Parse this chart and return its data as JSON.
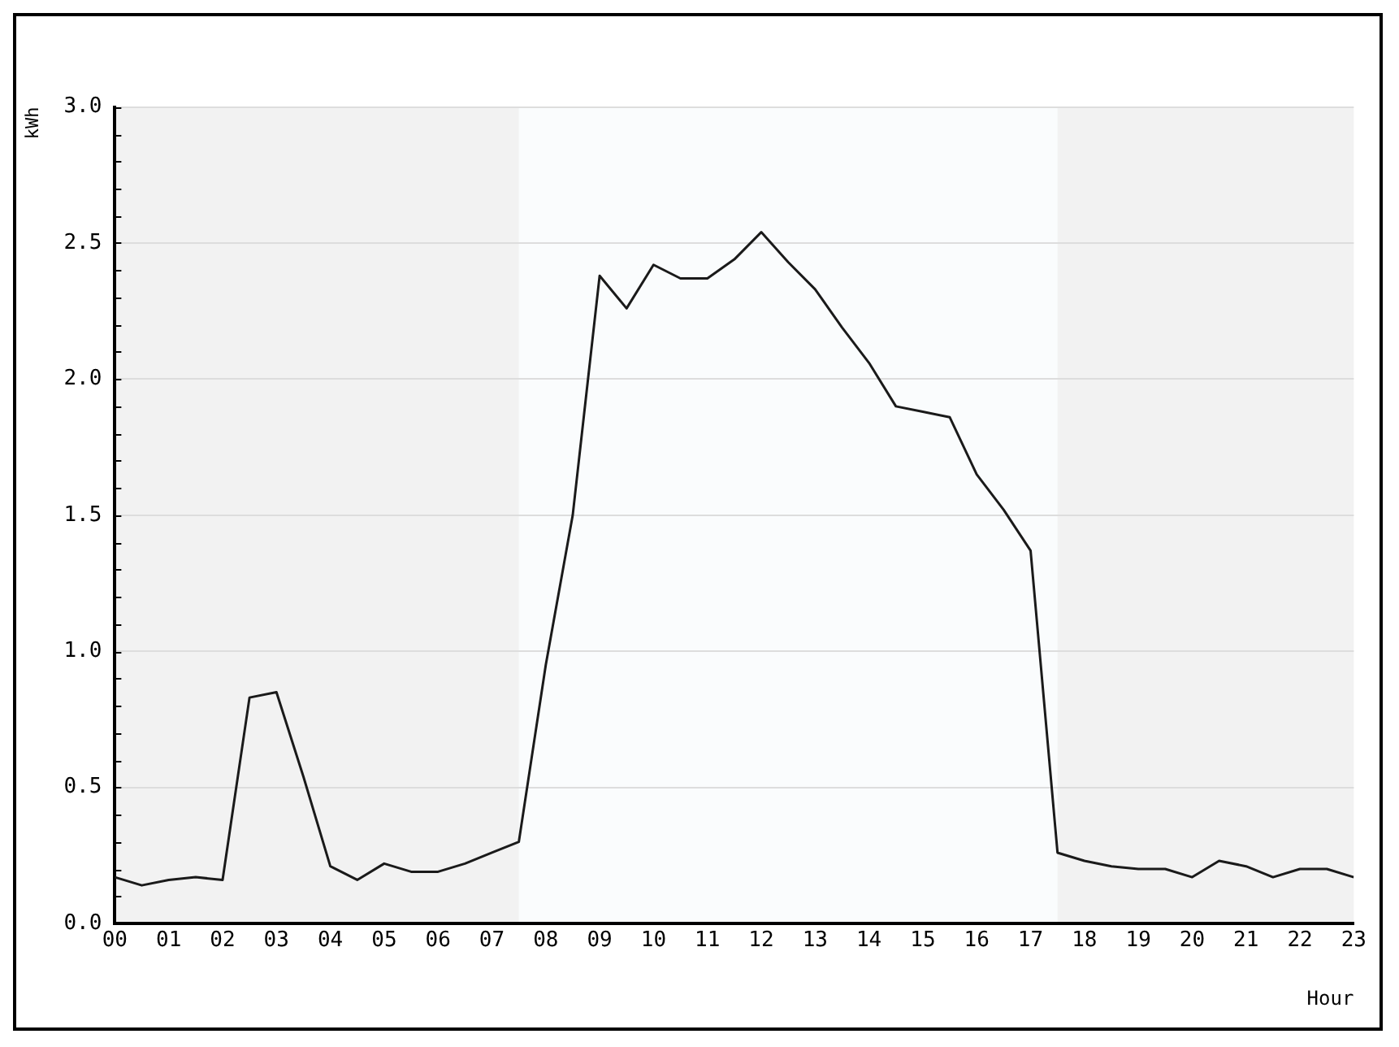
{
  "chart_data": {
    "type": "line",
    "xlabel": "Hour",
    "ylabel": "kWh",
    "x": [
      0,
      0.5,
      1,
      1.5,
      2,
      2.5,
      3,
      3.5,
      4,
      4.5,
      5,
      5.5,
      6,
      6.5,
      7,
      7.5,
      8,
      8.5,
      9,
      9.5,
      10,
      10.5,
      11,
      11.5,
      12,
      12.5,
      13,
      13.5,
      14,
      14.5,
      15,
      15.5,
      16,
      16.5,
      17,
      17.5,
      18,
      18.5,
      19,
      19.5,
      20,
      20.5,
      21,
      21.5,
      22,
      22.5,
      23
    ],
    "series": [
      {
        "color": "#1a1a1a",
        "values": [
          0.17,
          0.14,
          0.16,
          0.17,
          0.16,
          0.83,
          0.85,
          0.54,
          0.21,
          0.16,
          0.22,
          0.19,
          0.19,
          0.22,
          0.26,
          0.3,
          0.95,
          1.5,
          2.38,
          2.26,
          2.42,
          2.37,
          2.37,
          2.44,
          2.54,
          2.43,
          2.33,
          2.19,
          2.06,
          1.9,
          1.88,
          1.86,
          1.65,
          1.52,
          1.37,
          0.26,
          0.23,
          0.21,
          0.2,
          0.2,
          0.17,
          0.23,
          0.21,
          0.17,
          0.2,
          0.2,
          0.17
        ]
      }
    ],
    "xlim": [
      0,
      23
    ],
    "xticks": [
      {
        "value": 0,
        "label": "00"
      },
      {
        "value": 1,
        "label": "01"
      },
      {
        "value": 2,
        "label": "02"
      },
      {
        "value": 3,
        "label": "03"
      },
      {
        "value": 4,
        "label": "04"
      },
      {
        "value": 5,
        "label": "05"
      },
      {
        "value": 6,
        "label": "06"
      },
      {
        "value": 7,
        "label": "07"
      },
      {
        "value": 8,
        "label": "08"
      },
      {
        "value": 9,
        "label": "09"
      },
      {
        "value": 10,
        "label": "10"
      },
      {
        "value": 11,
        "label": "11"
      },
      {
        "value": 12,
        "label": "12"
      },
      {
        "value": 13,
        "label": "13"
      },
      {
        "value": 14,
        "label": "14"
      },
      {
        "value": 15,
        "label": "15"
      },
      {
        "value": 16,
        "label": "16"
      },
      {
        "value": 17,
        "label": "17"
      },
      {
        "value": 18,
        "label": "18"
      },
      {
        "value": 19,
        "label": "19"
      },
      {
        "value": 20,
        "label": "20"
      },
      {
        "value": 21,
        "label": "21"
      },
      {
        "value": 22,
        "label": "22"
      },
      {
        "value": 23,
        "label": "23"
      }
    ],
    "ylim": [
      0,
      3
    ],
    "yticks": [
      {
        "value": 0,
        "label": "0.0"
      },
      {
        "value": 0.5,
        "label": "0.5"
      },
      {
        "value": 1,
        "label": "1.0"
      },
      {
        "value": 1.5,
        "label": "1.5"
      },
      {
        "value": 2,
        "label": "2.0"
      },
      {
        "value": 2.5,
        "label": "2.5"
      },
      {
        "value": 3,
        "label": "3.0"
      }
    ],
    "bands": [
      {
        "axis": "x",
        "from": 7.5,
        "to": 17.5,
        "color": "#fafcfd"
      }
    ],
    "grid": "y",
    "legend": false,
    "marker": "none",
    "line_style": "solid"
  }
}
